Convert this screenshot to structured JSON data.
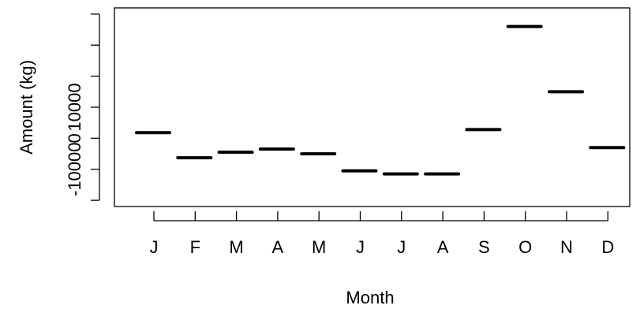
{
  "chart_data": {
    "type": "scatter",
    "xlabel": "Month",
    "ylabel": "Amount (kg)",
    "categories": [
      "J",
      "F",
      "M",
      "A",
      "M",
      "J",
      "J",
      "A",
      "S",
      "O",
      "N",
      "D"
    ],
    "values": [
      1800,
      -6300,
      -4500,
      -3500,
      -5000,
      -10500,
      -11500,
      -11500,
      2800,
      36000,
      15000,
      -3000
    ],
    "ylim": [
      -22000,
      42000
    ],
    "yticks": [
      -10000,
      0,
      10000
    ],
    "ytick_labels": [
      "-10000",
      "0",
      "10000"
    ],
    "grid": false,
    "legend": "none"
  }
}
